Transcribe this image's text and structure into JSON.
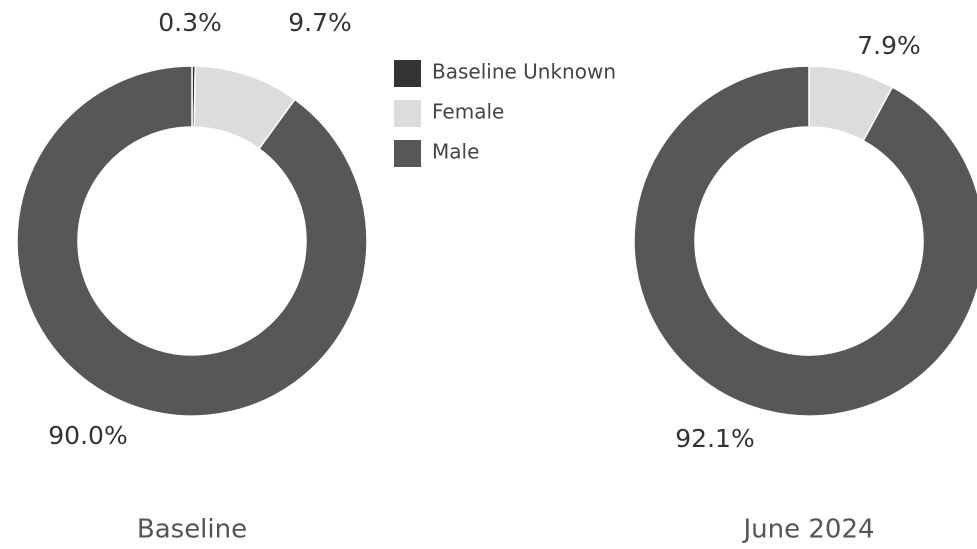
{
  "chart_data": [
    {
      "type": "pie",
      "donut": true,
      "title": "Baseline",
      "categories": [
        "Baseline Unknown",
        "Female",
        "Male"
      ],
      "values": [
        0.3,
        9.7,
        90.0
      ],
      "value_labels": [
        "0.3%",
        "9.7%",
        "90.0%"
      ],
      "colors": [
        "#333333",
        "#dcdcdc",
        "#575757"
      ]
    },
    {
      "type": "pie",
      "donut": true,
      "title": "June 2024",
      "categories": [
        "Female",
        "Male"
      ],
      "values": [
        7.9,
        92.1
      ],
      "value_labels": [
        "7.9%",
        "92.1%"
      ],
      "colors": [
        "#dcdcdc",
        "#575757"
      ]
    }
  ]
}
